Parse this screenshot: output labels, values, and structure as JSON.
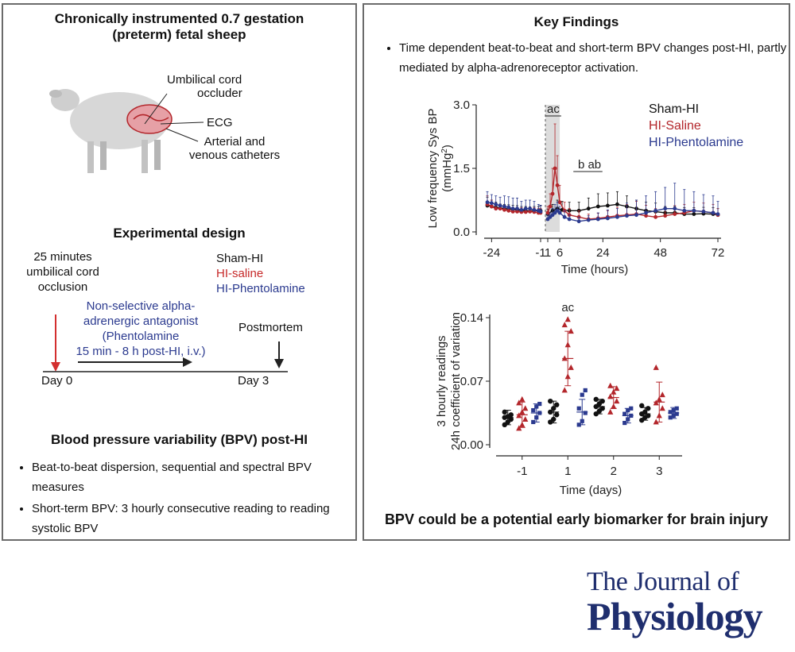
{
  "left_panel": {
    "title_line1": "Chronically instrumented 0.7 gestation",
    "title_line2": "(preterm) fetal sheep",
    "sheep_labels": {
      "occluder_line1": "Umbilical cord",
      "occluder_line2": "occluder",
      "ecg": "ECG",
      "catheters_line1": "Arterial and",
      "catheters_line2": "venous catheters"
    },
    "design_title": "Experimental design",
    "occlusion_line1": "25 minutes",
    "occlusion_line2": "umbilical cord",
    "occlusion_line3": "occlusion",
    "groups": [
      "Sham-HI",
      "HI-saline",
      "HI-Phentolamine"
    ],
    "treatment_lines": [
      "Non-selective alpha-",
      "adrenergic antagonist",
      "(Phentolamine",
      "15 min - 8 h post-HI, i.v.)"
    ],
    "postmortem": "Postmortem",
    "day0": "Day 0",
    "day3": "Day 3",
    "bpv_title": "Blood pressure variability (BPV) post-HI",
    "bpv_bullets": [
      "Beat-to-beat dispersion, sequential and spectral BPV measures",
      "Short-term BPV: 3 hourly consecutive reading to reading systolic BPV"
    ]
  },
  "right_panel": {
    "title": "Key Findings",
    "finding": "Time dependent beat-to-beat and short-term BPV changes post-HI, partly mediated by alpha-adrenoreceptor activation.",
    "conclusion": "BPV could be a potential early biomarker for brain injury"
  },
  "colors": {
    "sham": "#111111",
    "saline": "#b3262b",
    "phentolamine": "#2b3a8f",
    "occlusion_shade": "#dcdcdc"
  },
  "chart_data": [
    {
      "type": "line",
      "ylabel_line1": "Low frequency Sys BP",
      "ylabel_line2": "(mmHg",
      "ylabel_sup": "2",
      "ylabel_close": ")",
      "xlabel": "Time (hours)",
      "ylim": [
        0,
        3.0
      ],
      "yticks": [
        "0.0",
        "1.5",
        "3.0"
      ],
      "xticks": [
        "-24",
        "-1",
        "1",
        "6",
        "24",
        "48",
        "72"
      ],
      "xtick_values": [
        -24,
        -1,
        1,
        6,
        24,
        48,
        72
      ],
      "shaded_hours": [
        0,
        6
      ],
      "annotations": [
        {
          "text": "ac",
          "hour": 3.3,
          "underline": true
        },
        {
          "text": "b",
          "hour": 15,
          "underline": true
        },
        {
          "text": "ab",
          "hour": 20.5,
          "underline": true
        }
      ],
      "legend_position": "top-right",
      "series": [
        {
          "name": "Sham-HI",
          "color_key": "sham",
          "x": [
            -26,
            -24,
            -22,
            -20,
            -18,
            -16,
            -14,
            -12,
            -10,
            -8,
            -6,
            -4,
            -2,
            -1,
            1,
            3,
            5,
            7,
            10,
            14,
            18,
            22,
            26,
            30,
            34,
            38,
            42,
            46,
            50,
            54,
            58,
            62,
            66,
            70,
            72
          ],
          "y": [
            0.62,
            0.6,
            0.58,
            0.56,
            0.55,
            0.54,
            0.53,
            0.52,
            0.5,
            0.5,
            0.49,
            0.5,
            0.5,
            0.5,
            0.42,
            0.5,
            0.55,
            0.52,
            0.5,
            0.5,
            0.55,
            0.6,
            0.62,
            0.65,
            0.6,
            0.55,
            0.5,
            0.48,
            0.45,
            0.45,
            0.42,
            0.42,
            0.43,
            0.42,
            0.4
          ],
          "err": [
            0.2,
            0.15,
            0.12,
            0.1,
            0.1,
            0.1,
            0.1,
            0.1,
            0.1,
            0.1,
            0.1,
            0.1,
            0.1,
            0.12,
            0.12,
            0.15,
            0.2,
            0.2,
            0.2,
            0.2,
            0.25,
            0.3,
            0.3,
            0.3,
            0.25,
            0.2,
            0.2,
            0.2,
            0.15,
            0.15,
            0.15,
            0.15,
            0.15,
            0.15,
            0.15
          ]
        },
        {
          "name": "HI-Saline",
          "color_key": "saline",
          "x": [
            -26,
            -24,
            -22,
            -20,
            -18,
            -16,
            -14,
            -12,
            -10,
            -8,
            -6,
            -4,
            -2,
            -1,
            1,
            2,
            3,
            4,
            5,
            6,
            8,
            10,
            14,
            18,
            22,
            26,
            30,
            34,
            38,
            42,
            46,
            50,
            54,
            58,
            62,
            66,
            70,
            72
          ],
          "y": [
            0.65,
            0.6,
            0.55,
            0.55,
            0.52,
            0.5,
            0.48,
            0.48,
            0.47,
            0.47,
            0.48,
            0.47,
            0.45,
            0.45,
            0.45,
            0.6,
            0.9,
            1.5,
            1.1,
            0.7,
            0.5,
            0.4,
            0.35,
            0.3,
            0.32,
            0.35,
            0.38,
            0.4,
            0.42,
            0.38,
            0.35,
            0.38,
            0.42,
            0.45,
            0.5,
            0.48,
            0.45,
            0.4
          ],
          "err": [
            0.2,
            0.15,
            0.12,
            0.1,
            0.1,
            0.1,
            0.1,
            0.1,
            0.1,
            0.1,
            0.1,
            0.1,
            0.1,
            0.1,
            0.15,
            0.3,
            0.6,
            1.05,
            0.7,
            0.4,
            0.2,
            0.15,
            0.15,
            0.12,
            0.12,
            0.15,
            0.2,
            0.25,
            0.3,
            0.25,
            0.2,
            0.2,
            0.2,
            0.2,
            0.2,
            0.2,
            0.2,
            0.15
          ]
        },
        {
          "name": "HI-Phentolamine",
          "color_key": "phentolamine",
          "x": [
            -26,
            -24,
            -22,
            -20,
            -18,
            -16,
            -14,
            -12,
            -10,
            -8,
            -6,
            -4,
            -2,
            -1,
            1,
            2,
            3,
            4,
            5,
            6,
            8,
            10,
            14,
            18,
            22,
            26,
            30,
            34,
            38,
            42,
            46,
            50,
            54,
            58,
            62,
            66,
            70,
            72
          ],
          "y": [
            0.7,
            0.68,
            0.65,
            0.62,
            0.6,
            0.58,
            0.55,
            0.55,
            0.52,
            0.55,
            0.55,
            0.52,
            0.5,
            0.48,
            0.3,
            0.35,
            0.4,
            0.45,
            0.5,
            0.45,
            0.35,
            0.3,
            0.25,
            0.28,
            0.3,
            0.32,
            0.35,
            0.38,
            0.4,
            0.45,
            0.5,
            0.55,
            0.55,
            0.5,
            0.5,
            0.48,
            0.45,
            0.42
          ],
          "err": [
            0.25,
            0.2,
            0.2,
            0.2,
            0.25,
            0.25,
            0.25,
            0.25,
            0.2,
            0.2,
            0.2,
            0.2,
            0.15,
            0.15,
            0.1,
            0.1,
            0.15,
            0.2,
            0.2,
            0.15,
            0.15,
            0.1,
            0.1,
            0.1,
            0.15,
            0.2,
            0.2,
            0.3,
            0.35,
            0.4,
            0.45,
            0.5,
            0.6,
            0.5,
            0.45,
            0.4,
            0.4,
            0.3
          ]
        }
      ]
    },
    {
      "type": "scatter",
      "ylabel_line1": "3 hourly readings",
      "ylabel_line2": "24h coefficient of variation",
      "xlabel": "Time (days)",
      "ylim": [
        0,
        0.14
      ],
      "yticks": [
        "0.00",
        "0.07",
        "0.14"
      ],
      "categories": [
        "-1",
        "1",
        "2",
        "3"
      ],
      "annotations": [
        {
          "text": "ac",
          "category": "1"
        }
      ],
      "series": [
        {
          "name": "Sham-HI",
          "color_key": "sham",
          "marker": "circle",
          "means": [
            0.03,
            0.036,
            0.042,
            0.034
          ],
          "sd": [
            0.008,
            0.012,
            0.008,
            0.007
          ],
          "points": [
            [
              0.022,
              0.025,
              0.028,
              0.03,
              0.031,
              0.033,
              0.036
            ],
            [
              0.025,
              0.028,
              0.033,
              0.036,
              0.04,
              0.044,
              0.048
            ],
            [
              0.034,
              0.037,
              0.04,
              0.042,
              0.045,
              0.048,
              0.05
            ],
            [
              0.027,
              0.03,
              0.032,
              0.034,
              0.036,
              0.04,
              0.043
            ]
          ]
        },
        {
          "name": "HI-Saline",
          "color_key": "saline",
          "marker": "triangle",
          "means": [
            0.033,
            0.095,
            0.052,
            0.047
          ],
          "sd": [
            0.014,
            0.03,
            0.012,
            0.022
          ],
          "points": [
            [
              0.018,
              0.022,
              0.028,
              0.032,
              0.036,
              0.04,
              0.046,
              0.05
            ],
            [
              0.06,
              0.075,
              0.085,
              0.095,
              0.11,
              0.125,
              0.132,
              0.138
            ],
            [
              0.036,
              0.042,
              0.048,
              0.053,
              0.058,
              0.062,
              0.065
            ],
            [
              0.025,
              0.032,
              0.04,
              0.046,
              0.05,
              0.055,
              0.085
            ]
          ]
        },
        {
          "name": "HI-Phentolamine",
          "color_key": "phentolamine",
          "marker": "square",
          "means": [
            0.035,
            0.036,
            0.032,
            0.035
          ],
          "sd": [
            0.01,
            0.014,
            0.008,
            0.006
          ],
          "points": [
            [
              0.025,
              0.03,
              0.035,
              0.038,
              0.042,
              0.045
            ],
            [
              0.022,
              0.026,
              0.035,
              0.04,
              0.055,
              0.06
            ],
            [
              0.024,
              0.028,
              0.032,
              0.034,
              0.038,
              0.04
            ],
            [
              0.03,
              0.032,
              0.034,
              0.036,
              0.038,
              0.04
            ]
          ]
        }
      ]
    }
  ],
  "journal": {
    "line1": "The Journal of",
    "line2": "Physiology"
  }
}
